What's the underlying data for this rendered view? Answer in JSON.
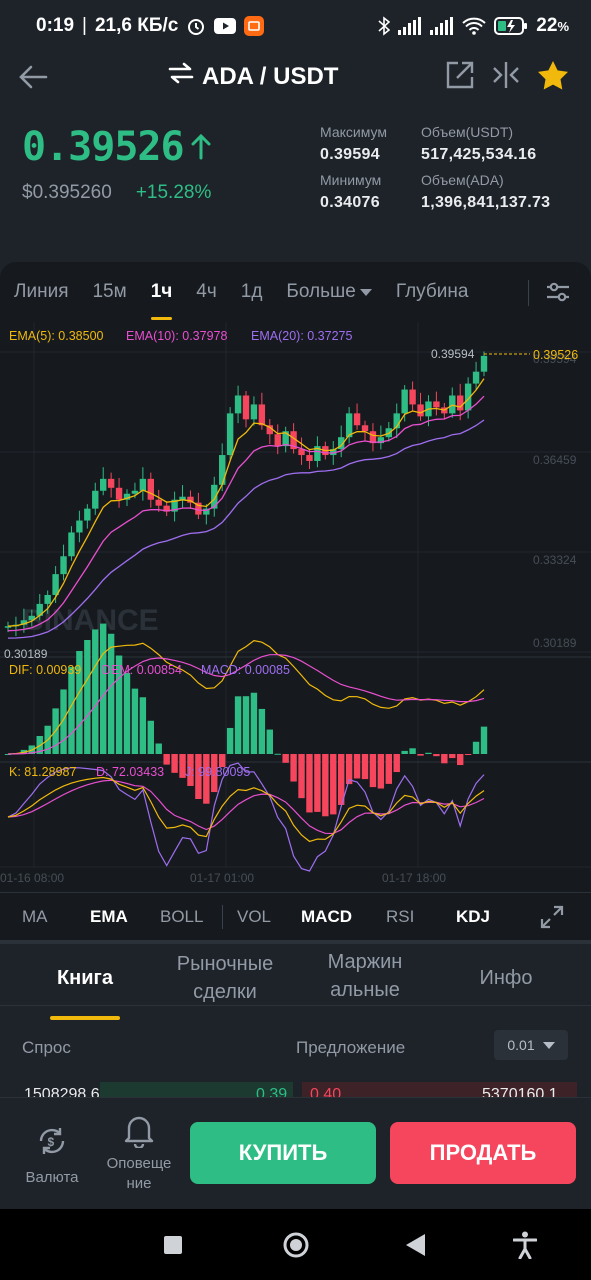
{
  "status": {
    "time": "0:19",
    "speed": "21,6 КБ/с",
    "battery": "22",
    "battery_unit": "%",
    "icons": [
      "alarm-icon",
      "youtube-icon",
      "mi-app-icon",
      "bluetooth-icon",
      "signal-icon",
      "signal-icon",
      "wifi-icon",
      "battery-icon"
    ]
  },
  "header": {
    "pair": "ADA / USDT",
    "icons": [
      "back-arrow-icon",
      "swap-icon",
      "share-icon",
      "split-icon",
      "star-icon"
    ]
  },
  "ticker": {
    "last": "0.39526",
    "usd": "$0.395260",
    "change": "+15.28%",
    "high_label": "Максимум",
    "high": "0.39594",
    "low_label": "Минимум",
    "low": "0.34076",
    "vol_usdt_label": "Объем(USDT)",
    "vol_usdt": "517,425,534.16",
    "vol_ada_label": "Объем(ADA)",
    "vol_ada": "1,396,841,137.73"
  },
  "timeframes": {
    "items": [
      "Линия",
      "15м",
      "1ч",
      "4ч",
      "1д"
    ],
    "active": "1ч",
    "more": "Больше",
    "depth": "Глубина"
  },
  "chart": {
    "ema_labels": [
      "EMA(5): 0.38500",
      "EMA(10): 0.37978",
      "EMA(20): 0.37275"
    ],
    "max_label": "0.39594",
    "last_label": "0.39526",
    "min_label": "0.30189",
    "price_ticks": [
      "0.39594",
      "0.36459",
      "0.33324",
      "0.30189"
    ],
    "watermark": "BINANCE",
    "macd_labels": [
      "DIF: 0.00939",
      "DEM: 0.00854",
      "MACD: 0.00085"
    ],
    "kdj_labels": [
      "K: 81.28987",
      "D: 72.03433",
      "J: 99.80095"
    ],
    "time_ticks": [
      "01-16 08:00",
      "01-17 01:00",
      "01-17 18:00"
    ],
    "colors": {
      "up": "#2ebd85",
      "down": "#f6465d",
      "ema5": "#f0b90b",
      "ema10": "#e94fd0",
      "ema20": "#9f6ef1",
      "accent": "#f0b90b"
    }
  },
  "indicators": {
    "items": [
      "MA",
      "EMA",
      "BOLL",
      "VOL",
      "MACD",
      "RSI",
      "KDJ"
    ],
    "on": [
      "EMA",
      "MACD",
      "KDJ"
    ]
  },
  "book": {
    "tabs": [
      {
        "l1": "Книга",
        "l2": ""
      },
      {
        "l1": "Рыночные",
        "l2": "сделки"
      },
      {
        "l1": "Маржин",
        "l2": "альные"
      },
      {
        "l1": "Инфо",
        "l2": ""
      }
    ],
    "active": "Книга",
    "bid_label": "Спрос",
    "ask_label": "Предложение",
    "step": "0.01",
    "row": {
      "bid_qty": "1508298.6",
      "bid_price": "0.39",
      "ask_price": "0.40",
      "ask_qty": "5370160.1"
    }
  },
  "actions": {
    "currency": "Валюта",
    "alert_1": "Оповеще",
    "alert_2": "ние",
    "buy": "КУПИТЬ",
    "sell": "ПРОДАТЬ"
  }
}
